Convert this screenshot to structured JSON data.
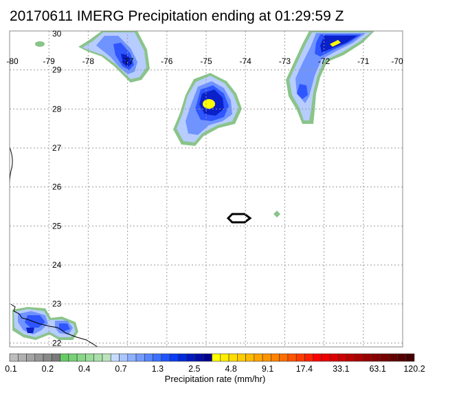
{
  "title": "20170611 IMERG Precipitation ending at 01:29:59 Z",
  "map": {
    "lon_range": [
      -80,
      -70
    ],
    "lat_range": [
      21.9,
      30
    ],
    "lon_ticks": [
      "-80",
      "-79",
      "-78",
      "-77",
      "-76",
      "-75",
      "-74",
      "-73",
      "-72",
      "-71",
      "-70"
    ],
    "lat_ticks": [
      "30",
      "29",
      "28",
      "27",
      "26",
      "25",
      "24",
      "23",
      "22"
    ],
    "gridlines": true
  },
  "colorbar": {
    "label": "Precipitation rate (mm/hr)",
    "ticks": [
      "0.1",
      "0.2",
      "0.4",
      "0.7",
      "1.3",
      "2.5",
      "4.8",
      "9.1",
      "17.4",
      "33.1",
      "63.1",
      "120.2"
    ],
    "colors": [
      "#bdbdbd",
      "#b0b0b0",
      "#a3a3a3",
      "#969696",
      "#898989",
      "#7a7a7a",
      "#66cc66",
      "#77d177",
      "#88d688",
      "#99db99",
      "#aadfaa",
      "#bbe4bb",
      "#c6dbff",
      "#aac6ff",
      "#8fb0ff",
      "#739bff",
      "#5886ff",
      "#3d70ff",
      "#2155ff",
      "#0a3cf5",
      "#0028dc",
      "#0018c0",
      "#000ca6",
      "#00008c",
      "#ffff00",
      "#ffee00",
      "#ffdd00",
      "#ffcc00",
      "#ffbb00",
      "#ffa500",
      "#ff9400",
      "#ff8200",
      "#ff6e00",
      "#ff5500",
      "#ff3c00",
      "#ff2000",
      "#ff0000",
      "#ee0000",
      "#dd0000",
      "#cc0000",
      "#bb0000",
      "#aa0000",
      "#990000",
      "#880000",
      "#770000",
      "#660000",
      "#550000",
      "#440000"
    ]
  },
  "colors": {
    "green_edge": "#8ac48a",
    "light_blue": "#9fb8ff",
    "mid_blue": "#3f6bff",
    "deep_blue": "#0018d0",
    "yellow": "#ffff00"
  }
}
